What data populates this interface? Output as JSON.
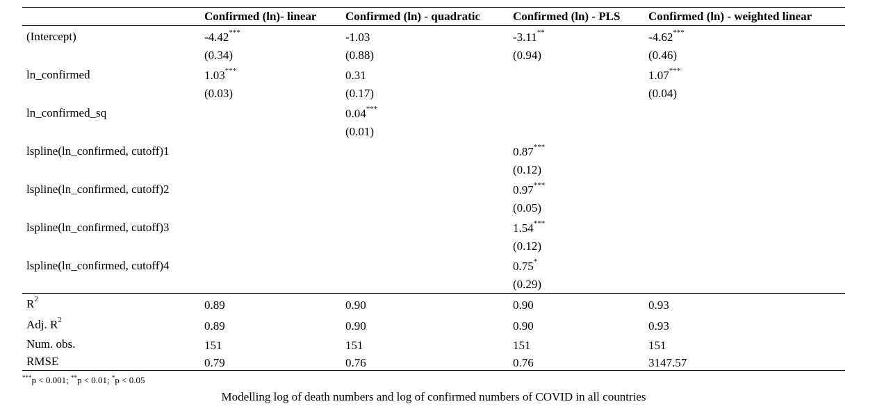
{
  "columns": [
    "Confirmed (ln)- linear",
    "Confirmed (ln) - quadratic",
    "Confirmed (ln) - PLS",
    "Confirmed (ln) - weighted linear"
  ],
  "rows": [
    {
      "label": "(Intercept)",
      "coef": [
        {
          "v": "-4.42",
          "s": "***"
        },
        {
          "v": "-1.03",
          "s": ""
        },
        {
          "v": "-3.11",
          "s": "**"
        },
        {
          "v": "-4.62",
          "s": "***"
        }
      ],
      "se": [
        "(0.34)",
        "(0.88)",
        "(0.94)",
        "(0.46)"
      ]
    },
    {
      "label": "ln_confirmed",
      "coef": [
        {
          "v": "1.03",
          "s": "***"
        },
        {
          "v": "0.31",
          "s": ""
        },
        {
          "v": "",
          "s": ""
        },
        {
          "v": "1.07",
          "s": "***"
        }
      ],
      "se": [
        "(0.03)",
        "(0.17)",
        "",
        "(0.04)"
      ]
    },
    {
      "label": "ln_confirmed_sq",
      "coef": [
        {
          "v": "",
          "s": ""
        },
        {
          "v": "0.04",
          "s": "***"
        },
        {
          "v": "",
          "s": ""
        },
        {
          "v": "",
          "s": ""
        }
      ],
      "se": [
        "",
        "(0.01)",
        "",
        ""
      ]
    },
    {
      "label": "lspline(ln_confirmed, cutoff)1",
      "coef": [
        {
          "v": "",
          "s": ""
        },
        {
          "v": "",
          "s": ""
        },
        {
          "v": "0.87",
          "s": "***"
        },
        {
          "v": "",
          "s": ""
        }
      ],
      "se": [
        "",
        "",
        "(0.12)",
        ""
      ]
    },
    {
      "label": "lspline(ln_confirmed, cutoff)2",
      "coef": [
        {
          "v": "",
          "s": ""
        },
        {
          "v": "",
          "s": ""
        },
        {
          "v": "0.97",
          "s": "***"
        },
        {
          "v": "",
          "s": ""
        }
      ],
      "se": [
        "",
        "",
        "(0.05)",
        ""
      ]
    },
    {
      "label": "lspline(ln_confirmed, cutoff)3",
      "coef": [
        {
          "v": "",
          "s": ""
        },
        {
          "v": "",
          "s": ""
        },
        {
          "v": "1.54",
          "s": "***"
        },
        {
          "v": "",
          "s": ""
        }
      ],
      "se": [
        "",
        "",
        "(0.12)",
        ""
      ]
    },
    {
      "label": "lspline(ln_confirmed, cutoff)4",
      "coef": [
        {
          "v": "",
          "s": ""
        },
        {
          "v": "",
          "s": ""
        },
        {
          "v": "0.75",
          "s": "*"
        },
        {
          "v": "",
          "s": ""
        }
      ],
      "se": [
        "",
        "",
        "(0.29)",
        ""
      ]
    }
  ],
  "stats": [
    {
      "label": "R",
      "sup": "2",
      "values": [
        "0.89",
        "0.90",
        "0.90",
        "0.93"
      ]
    },
    {
      "label": "Adj. R",
      "sup": "2",
      "values": [
        "0.89",
        "0.90",
        "0.90",
        "0.93"
      ]
    },
    {
      "label": "Num. obs.",
      "sup": "",
      "values": [
        "151",
        "151",
        "151",
        "151"
      ]
    },
    {
      "label": "RMSE",
      "sup": "",
      "values": [
        "0.79",
        "0.76",
        "0.76",
        "3147.57"
      ]
    }
  ],
  "notes": {
    "s1": "***",
    "t1": "p < 0.001; ",
    "s2": "**",
    "t2": "p < 0.01; ",
    "s3": "*",
    "t3": "p < 0.05"
  },
  "caption": "Modelling log of death numbers and log of confirmed numbers of COVID in all countries"
}
